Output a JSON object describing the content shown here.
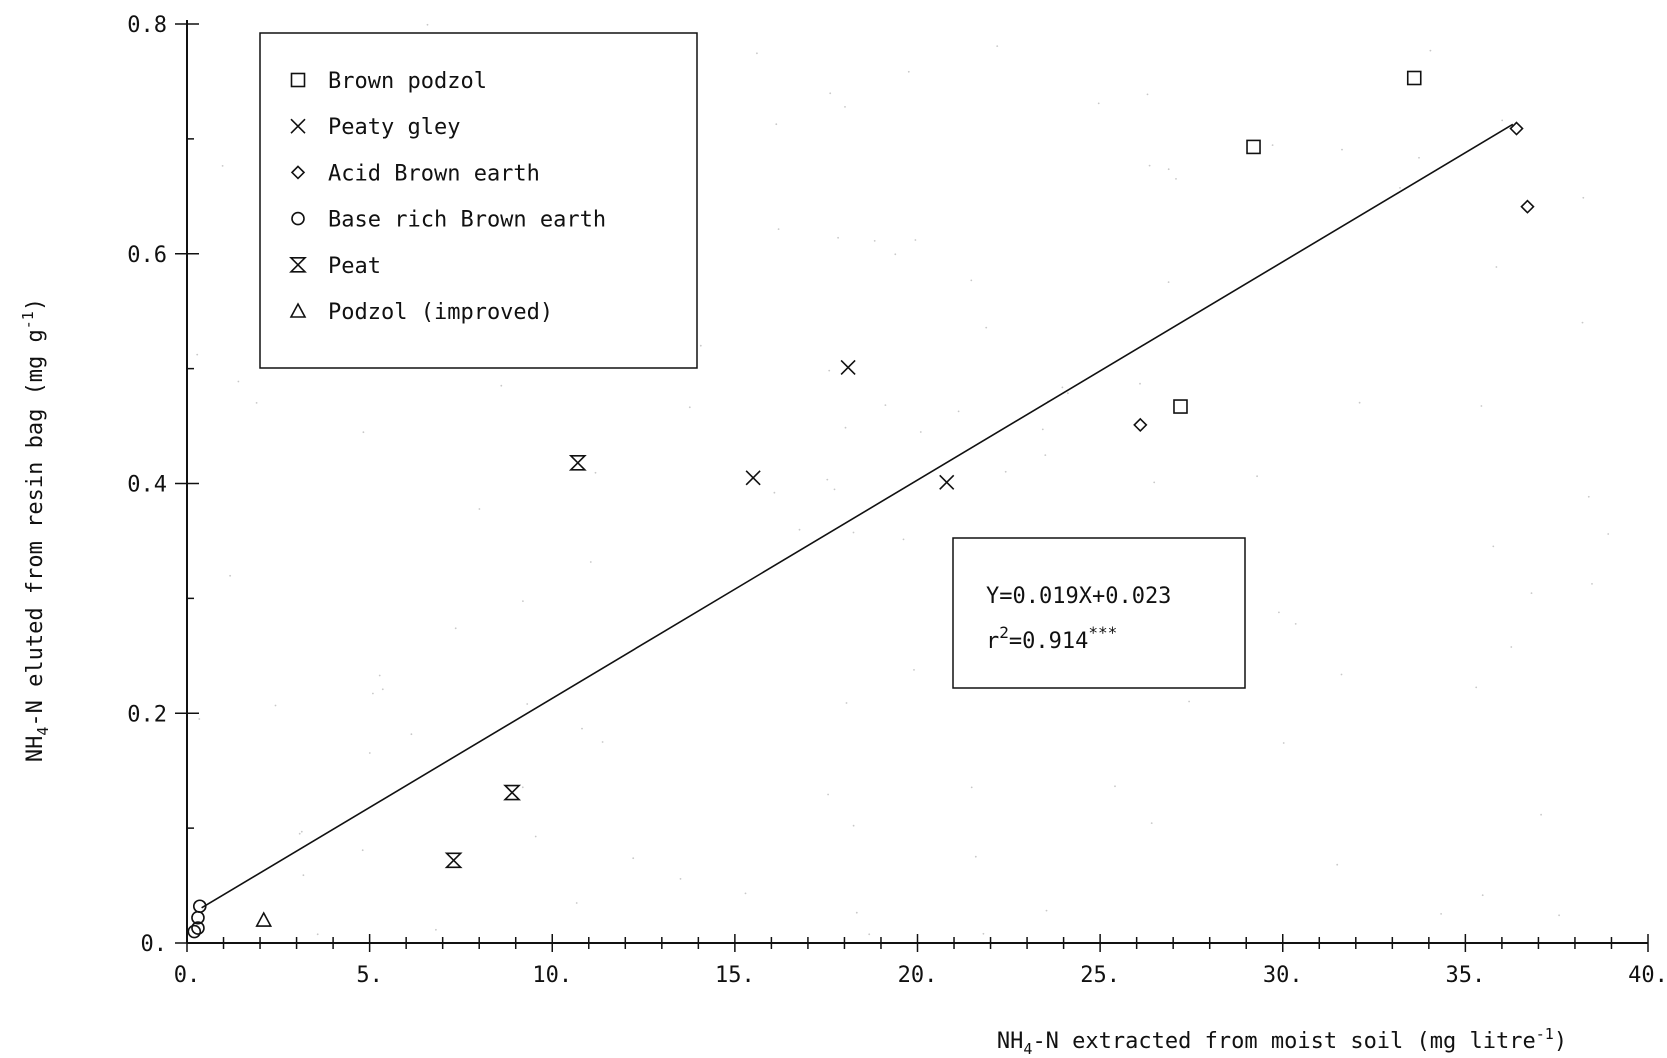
{
  "chart_data": {
    "type": "scatter",
    "xlabel": {
      "main": "NH",
      "sub": "4",
      "rest": "-N extracted from moist soil  (mg litre",
      "sup": "-1",
      "close": ")"
    },
    "ylabel": {
      "main": "NH",
      "sub": "4",
      "rest": "-N eluted from resin bag  (mg g",
      "sup": "-1",
      "close": ")"
    },
    "xlim": [
      0,
      40
    ],
    "ylim": [
      0,
      0.8
    ],
    "x_ticks": [
      {
        "value": 0,
        "label": "0."
      },
      {
        "value": 5,
        "label": "5."
      },
      {
        "value": 10,
        "label": "10."
      },
      {
        "value": 15,
        "label": "15."
      },
      {
        "value": 20,
        "label": "20."
      },
      {
        "value": 25,
        "label": "25."
      },
      {
        "value": 30,
        "label": "30."
      },
      {
        "value": 35,
        "label": "35."
      },
      {
        "value": 40,
        "label": "40."
      }
    ],
    "y_ticks": [
      {
        "value": 0,
        "label": "0."
      },
      {
        "value": 0.2,
        "label": "0.2"
      },
      {
        "value": 0.4,
        "label": "0.4"
      },
      {
        "value": 0.6,
        "label": "0.6"
      },
      {
        "value": 0.8,
        "label": "0.8"
      }
    ],
    "x_minor_step": 1,
    "y_minor_step": 0.1,
    "legend_position": "top-left",
    "series": [
      {
        "name": "Brown podzol",
        "marker": "square",
        "points": [
          [
            27.2,
            0.467
          ],
          [
            29.2,
            0.693
          ],
          [
            33.6,
            0.753
          ]
        ]
      },
      {
        "name": "Peaty gley",
        "marker": "cross",
        "points": [
          [
            15.5,
            0.405
          ],
          [
            18.1,
            0.501
          ],
          [
            20.8,
            0.401
          ]
        ]
      },
      {
        "name": "Acid Brown earth",
        "marker": "diamond",
        "points": [
          [
            26.1,
            0.451
          ],
          [
            36.4,
            0.709
          ],
          [
            36.7,
            0.641
          ]
        ]
      },
      {
        "name": "Base rich Brown earth",
        "marker": "circle",
        "points": [
          [
            0.2,
            0.01
          ],
          [
            0.3,
            0.013
          ],
          [
            0.3,
            0.022
          ],
          [
            0.35,
            0.032
          ]
        ]
      },
      {
        "name": "Peat",
        "marker": "hourglass",
        "points": [
          [
            7.3,
            0.072
          ],
          [
            8.9,
            0.131
          ],
          [
            10.7,
            0.418
          ]
        ]
      },
      {
        "name": "Podzol (improved)",
        "marker": "triangle",
        "points": [
          [
            2.1,
            0.02
          ]
        ]
      }
    ],
    "regression": {
      "slope": 0.019,
      "intercept": 0.023,
      "x_range": [
        0.4,
        36.3
      ]
    },
    "equation": {
      "line1": "Y=0.019X+0.023",
      "r_base": "r",
      "r_sup": "2",
      "r_rest": "=0.914",
      "stars": "***"
    },
    "colors": {
      "ink": "#111111",
      "background": "#ffffff"
    }
  }
}
